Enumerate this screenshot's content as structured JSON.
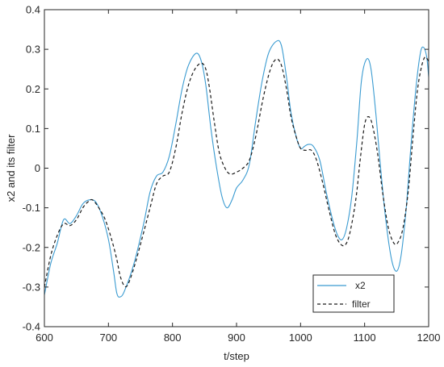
{
  "chart_data": {
    "type": "line",
    "title": "",
    "xlabel": "t/step",
    "ylabel": "x2 and its filter",
    "xlim": [
      600,
      1200
    ],
    "ylim": [
      -0.4,
      0.4
    ],
    "xticks": [
      600,
      700,
      800,
      900,
      1000,
      1100,
      1200
    ],
    "yticks": [
      -0.4,
      -0.3,
      -0.2,
      -0.1,
      0,
      0.1,
      0.2,
      0.3,
      0.4
    ],
    "ytick_labels": [
      "-0.4",
      "-0.3",
      "-0.2",
      "-0.1",
      "0",
      "0.1",
      "0.2",
      "0.3",
      "0.4"
    ],
    "grid": false,
    "legend_position": "bottom-right",
    "series": [
      {
        "name": "x2",
        "color": "#3a9bd1",
        "style": "solid",
        "points": [
          [
            600,
            -0.32
          ],
          [
            610,
            -0.24
          ],
          [
            620,
            -0.19
          ],
          [
            630,
            -0.13
          ],
          [
            640,
            -0.14
          ],
          [
            650,
            -0.12
          ],
          [
            660,
            -0.09
          ],
          [
            670,
            -0.08
          ],
          [
            680,
            -0.085
          ],
          [
            690,
            -0.12
          ],
          [
            700,
            -0.18
          ],
          [
            708,
            -0.26
          ],
          [
            713,
            -0.315
          ],
          [
            718,
            -0.325
          ],
          [
            725,
            -0.31
          ],
          [
            740,
            -0.24
          ],
          [
            755,
            -0.14
          ],
          [
            765,
            -0.06
          ],
          [
            775,
            -0.02
          ],
          [
            785,
            -0.01
          ],
          [
            795,
            0.03
          ],
          [
            805,
            0.11
          ],
          [
            815,
            0.2
          ],
          [
            825,
            0.26
          ],
          [
            837,
            0.29
          ],
          [
            845,
            0.27
          ],
          [
            852,
            0.21
          ],
          [
            860,
            0.1
          ],
          [
            868,
            0.01
          ],
          [
            877,
            -0.07
          ],
          [
            885,
            -0.1
          ],
          [
            893,
            -0.08
          ],
          [
            900,
            -0.05
          ],
          [
            910,
            -0.03
          ],
          [
            920,
            0.01
          ],
          [
            930,
            0.12
          ],
          [
            940,
            0.22
          ],
          [
            950,
            0.29
          ],
          [
            962,
            0.32
          ],
          [
            970,
            0.31
          ],
          [
            978,
            0.23
          ],
          [
            985,
            0.14
          ],
          [
            993,
            0.08
          ],
          [
            1000,
            0.05
          ],
          [
            1006,
            0.055
          ],
          [
            1012,
            0.06
          ],
          [
            1020,
            0.055
          ],
          [
            1030,
            0.02
          ],
          [
            1040,
            -0.06
          ],
          [
            1050,
            -0.13
          ],
          [
            1058,
            -0.17
          ],
          [
            1065,
            -0.18
          ],
          [
            1072,
            -0.15
          ],
          [
            1080,
            -0.07
          ],
          [
            1088,
            0.07
          ],
          [
            1095,
            0.22
          ],
          [
            1103,
            0.275
          ],
          [
            1110,
            0.25
          ],
          [
            1118,
            0.13
          ],
          [
            1125,
            0.0
          ],
          [
            1133,
            -0.13
          ],
          [
            1142,
            -0.23
          ],
          [
            1150,
            -0.26
          ],
          [
            1157,
            -0.22
          ],
          [
            1165,
            -0.1
          ],
          [
            1172,
            0.05
          ],
          [
            1180,
            0.2
          ],
          [
            1187,
            0.29
          ],
          [
            1192,
            0.305
          ],
          [
            1197,
            0.28
          ],
          [
            1200,
            0.23
          ]
        ]
      },
      {
        "name": "filter",
        "color": "#1a1a1a",
        "style": "dashed",
        "points": [
          [
            600,
            -0.3
          ],
          [
            610,
            -0.22
          ],
          [
            620,
            -0.17
          ],
          [
            630,
            -0.14
          ],
          [
            640,
            -0.145
          ],
          [
            650,
            -0.13
          ],
          [
            660,
            -0.1
          ],
          [
            668,
            -0.085
          ],
          [
            675,
            -0.08
          ],
          [
            685,
            -0.1
          ],
          [
            695,
            -0.13
          ],
          [
            705,
            -0.18
          ],
          [
            713,
            -0.23
          ],
          [
            718,
            -0.27
          ],
          [
            724,
            -0.295
          ],
          [
            730,
            -0.295
          ],
          [
            740,
            -0.25
          ],
          [
            752,
            -0.18
          ],
          [
            765,
            -0.1
          ],
          [
            775,
            -0.04
          ],
          [
            785,
            -0.02
          ],
          [
            795,
            -0.01
          ],
          [
            805,
            0.05
          ],
          [
            815,
            0.14
          ],
          [
            825,
            0.21
          ],
          [
            835,
            0.25
          ],
          [
            845,
            0.265
          ],
          [
            852,
            0.25
          ],
          [
            858,
            0.2
          ],
          [
            865,
            0.12
          ],
          [
            873,
            0.04
          ],
          [
            882,
            0.0
          ],
          [
            890,
            -0.015
          ],
          [
            900,
            -0.01
          ],
          [
            910,
            0.0
          ],
          [
            920,
            0.02
          ],
          [
            930,
            0.08
          ],
          [
            942,
            0.18
          ],
          [
            953,
            0.25
          ],
          [
            962,
            0.275
          ],
          [
            970,
            0.26
          ],
          [
            978,
            0.2
          ],
          [
            985,
            0.13
          ],
          [
            993,
            0.08
          ],
          [
            1000,
            0.05
          ],
          [
            1008,
            0.045
          ],
          [
            1017,
            0.045
          ],
          [
            1025,
            0.02
          ],
          [
            1035,
            -0.04
          ],
          [
            1045,
            -0.11
          ],
          [
            1055,
            -0.17
          ],
          [
            1065,
            -0.195
          ],
          [
            1073,
            -0.185
          ],
          [
            1080,
            -0.14
          ],
          [
            1087,
            -0.07
          ],
          [
            1093,
            0.02
          ],
          [
            1100,
            0.11
          ],
          [
            1106,
            0.13
          ],
          [
            1112,
            0.11
          ],
          [
            1120,
            0.04
          ],
          [
            1128,
            -0.06
          ],
          [
            1137,
            -0.15
          ],
          [
            1146,
            -0.19
          ],
          [
            1153,
            -0.185
          ],
          [
            1160,
            -0.15
          ],
          [
            1168,
            -0.06
          ],
          [
            1175,
            0.07
          ],
          [
            1182,
            0.19
          ],
          [
            1188,
            0.25
          ],
          [
            1194,
            0.28
          ],
          [
            1200,
            0.27
          ]
        ]
      }
    ]
  }
}
